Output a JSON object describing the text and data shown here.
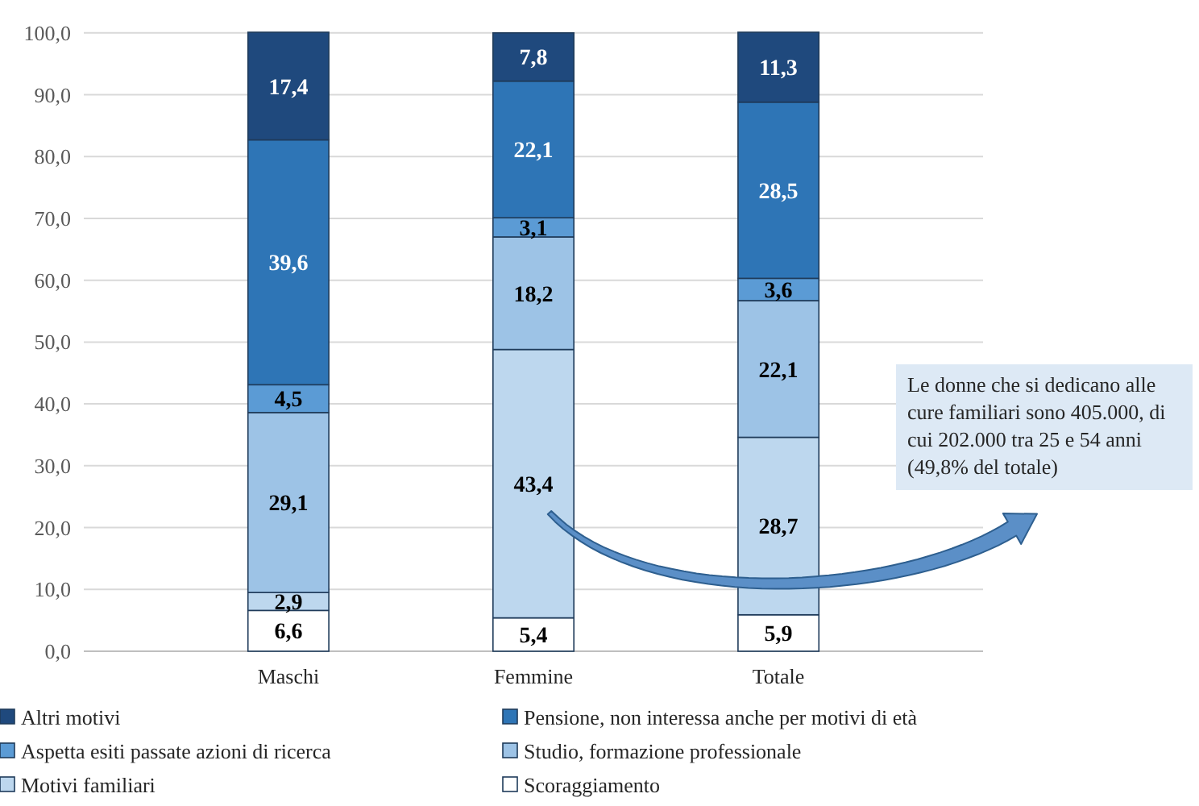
{
  "chart_data": {
    "type": "bar",
    "stacked": true,
    "categories": [
      "Maschi",
      "Femmine",
      "Totale"
    ],
    "series": [
      {
        "name": "Scoraggiamento",
        "color": "#ffffff",
        "values": [
          6.6,
          5.4,
          5.9
        ],
        "value_labels": [
          "6,6",
          "5,4",
          "5,9"
        ]
      },
      {
        "name": "Motivi familiari",
        "color": "#bdd7ee",
        "values": [
          2.9,
          43.4,
          28.7
        ],
        "value_labels": [
          "2,9",
          "43,4",
          "28,7"
        ]
      },
      {
        "name": "Studio, formazione professionale",
        "color": "#9dc3e6",
        "values": [
          29.1,
          18.2,
          22.1
        ],
        "value_labels": [
          "29,1",
          "18,2",
          "22,1"
        ]
      },
      {
        "name": "Aspetta esiti passate azioni di ricerca",
        "color": "#5b9bd5",
        "values": [
          4.5,
          3.1,
          3.6
        ],
        "value_labels": [
          "4,5",
          "3,1",
          "3,6"
        ]
      },
      {
        "name": "Pensione, non interessa anche per motivi di età",
        "color": "#2e75b6",
        "values": [
          39.6,
          22.1,
          28.5
        ],
        "value_labels": [
          "39,6",
          "22,1",
          "28,5"
        ]
      },
      {
        "name": "Altri motivi",
        "color": "#1f497d",
        "values": [
          17.4,
          7.8,
          11.3
        ],
        "value_labels": [
          "17,4",
          "7,8",
          "11,3"
        ]
      }
    ],
    "ylim": [
      0,
      100.1
    ],
    "yticks": [
      {
        "value": 0,
        "label": "0,0"
      },
      {
        "value": 10,
        "label": "10,0"
      },
      {
        "value": 20,
        "label": "20,0"
      },
      {
        "value": 30,
        "label": "30,0"
      },
      {
        "value": 40,
        "label": "40,0"
      },
      {
        "value": 50,
        "label": "50,0"
      },
      {
        "value": 60,
        "label": "60,0"
      },
      {
        "value": 70,
        "label": "70,0"
      },
      {
        "value": 80,
        "label": "80,0"
      },
      {
        "value": 90,
        "label": "90,0"
      },
      {
        "value": 100,
        "label": "100,0"
      }
    ],
    "grid": "y",
    "legend": "bottom",
    "annotations": [
      "Le donne che si dedicano alle cure familiari sono 405.000, di cui 202.000 tra 25 e 54 anni (49,8%  del totale)"
    ]
  }
}
